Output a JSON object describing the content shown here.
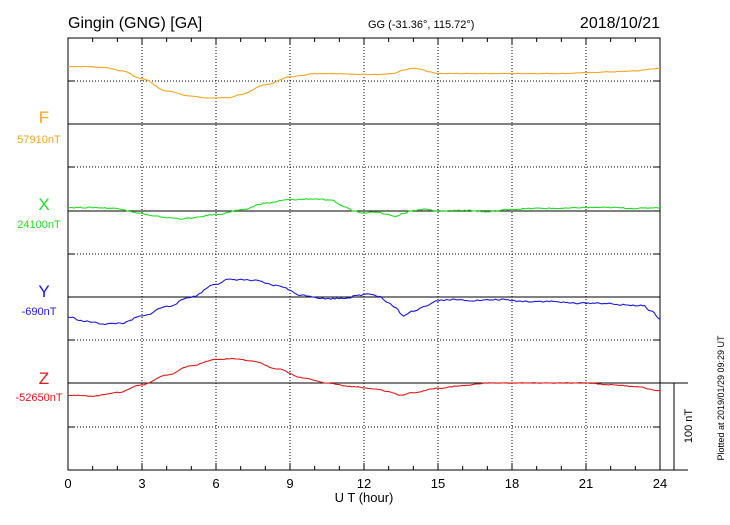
{
  "header": {
    "station": "Gingin (GNG)  [GA]",
    "coords": "GG (-31.36°, 115.72°)",
    "date": "2018/10/21"
  },
  "plotted_note": "Plotted at 2019/01/29 09:29 UT",
  "scale_bar_label": "100 nT",
  "chart_data": {
    "type": "line",
    "title": "Gingin (GNG)  [GA]",
    "xlabel": "U T (hour)",
    "xlim": [
      0,
      24
    ],
    "xticks": [
      0,
      3,
      6,
      9,
      12,
      15,
      18,
      21,
      24
    ],
    "grid": true,
    "series": [
      {
        "name": "F",
        "baseline_label": "57910nT",
        "color": "#f5a623",
        "x": [
          0,
          0.7,
          1.5,
          2.2,
          3,
          4,
          5,
          5.6,
          6,
          6.5,
          7,
          8,
          9,
          9.5,
          10,
          10.6,
          11,
          11.8,
          12.5,
          13.2,
          13.6,
          14,
          14.3,
          14.6,
          15,
          16,
          17,
          18,
          19,
          20,
          21,
          22,
          23,
          23.6,
          24
        ],
        "values": [
          66,
          66,
          65,
          61,
          52,
          38,
          32,
          30,
          30,
          30,
          34,
          45,
          54,
          56,
          58,
          58,
          58,
          57,
          57,
          58,
          62,
          64,
          63,
          60,
          58,
          58,
          58,
          58,
          58,
          58,
          59,
          60,
          61,
          63,
          64
        ]
      },
      {
        "name": "X",
        "baseline_label": "24100nT",
        "color": "#22dd22",
        "x": [
          0,
          1,
          2,
          2.8,
          3.5,
          4.2,
          4.6,
          5,
          6,
          7,
          8,
          9,
          10,
          10.7,
          11.2,
          11.6,
          12,
          12.5,
          13,
          13.3,
          13.6,
          14,
          14.6,
          15,
          16,
          17,
          18,
          19,
          20,
          21,
          22,
          23,
          24
        ],
        "values": [
          4,
          4,
          3,
          -2,
          -6,
          -8,
          -9,
          -8,
          -4,
          1,
          9,
          13,
          14,
          12,
          5,
          0,
          -2,
          -1,
          -4,
          -6,
          -3,
          1,
          2,
          0,
          1,
          -1,
          2,
          3,
          3,
          4,
          4,
          3,
          4
        ]
      },
      {
        "name": "Y",
        "baseline_label": "-690nT",
        "color": "#1a1adf",
        "x": [
          0,
          0.7,
          1.5,
          2.2,
          3,
          4,
          5,
          6,
          6.5,
          7,
          7.5,
          8.5,
          9.5,
          10.5,
          11.3,
          11.8,
          12.2,
          12.6,
          13,
          13.3,
          13.6,
          14,
          14.5,
          15,
          15.5,
          16.5,
          17.5,
          18.5,
          19.5,
          20.5,
          21.5,
          22.5,
          23.3,
          23.7,
          24
        ],
        "values": [
          -23,
          -28,
          -31,
          -30,
          -22,
          -11,
          0,
          15,
          20,
          20,
          19,
          13,
          2,
          -2,
          -1,
          2,
          4,
          1,
          -7,
          -13,
          -22,
          -16,
          -10,
          -4,
          -3,
          -4,
          -3,
          -5,
          -5,
          -7,
          -7,
          -9,
          -10,
          -17,
          -26
        ]
      },
      {
        "name": "Z",
        "baseline_label": "-52650nT",
        "color": "#e01a1a",
        "x": [
          0,
          1,
          2,
          3,
          4,
          5,
          6,
          6.7,
          7.5,
          8.5,
          9.5,
          10.5,
          11.5,
          12.5,
          13,
          13.5,
          14,
          15,
          16,
          17,
          18,
          19,
          20,
          21,
          22,
          23,
          24
        ],
        "values": [
          -14,
          -15,
          -11,
          -2,
          9,
          20,
          27,
          28,
          25,
          16,
          6,
          0,
          -4,
          -7,
          -10,
          -14,
          -11,
          -6,
          -3,
          0,
          0,
          0,
          0,
          0,
          -2,
          -4,
          -9
        ]
      }
    ]
  }
}
